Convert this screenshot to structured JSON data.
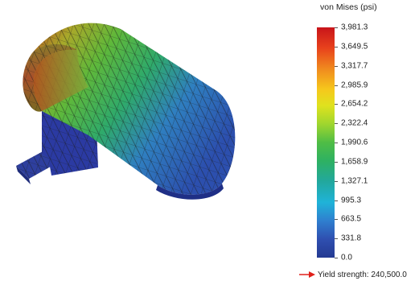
{
  "legend": {
    "title": "von Mises (psi)",
    "colors": [
      "#c8141a",
      "#f08a1e",
      "#dfe21e",
      "#4fbd45",
      "#1fb3d8",
      "#2f4fb0",
      "#243a92"
    ],
    "ticks": [
      "3,981.3",
      "3,649.5",
      "3,317.7",
      "2,985.9",
      "2,654.2",
      "2,322.4",
      "1,990.6",
      "1,658.9",
      "1,327.1",
      "995.3",
      "663.5",
      "331.8",
      "0.0"
    ]
  },
  "yield": {
    "label": "Yield strength: 240,500.0",
    "arrow_color": "#e0201a"
  },
  "model": {
    "name": "stress-plot-model",
    "mesh_color": "#1a1a1a"
  }
}
